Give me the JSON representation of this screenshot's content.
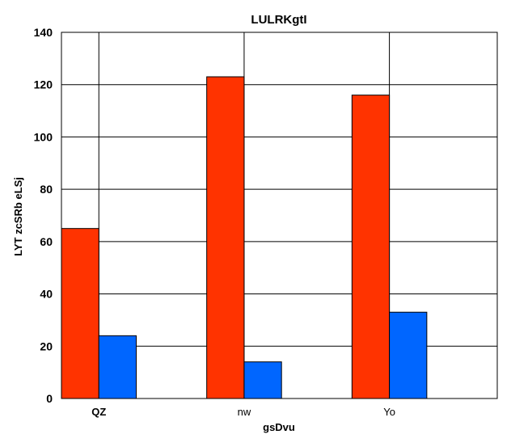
{
  "chart_data": {
    "type": "bar",
    "title": "LULRKgtI",
    "xlabel": "gsDvu",
    "ylabel": "LYT zcSRb eLSj",
    "categories": [
      "QZ",
      "nw",
      "Yo"
    ],
    "series": [
      {
        "values": [
          65,
          123,
          116
        ],
        "color": "#ff3300"
      },
      {
        "values": [
          24,
          14,
          33
        ],
        "color": "#0066ff"
      }
    ],
    "ylim": [
      0,
      140
    ],
    "yticks": [
      0,
      20,
      40,
      60,
      80,
      100,
      120,
      140
    ],
    "grid": true,
    "legend": "none"
  }
}
